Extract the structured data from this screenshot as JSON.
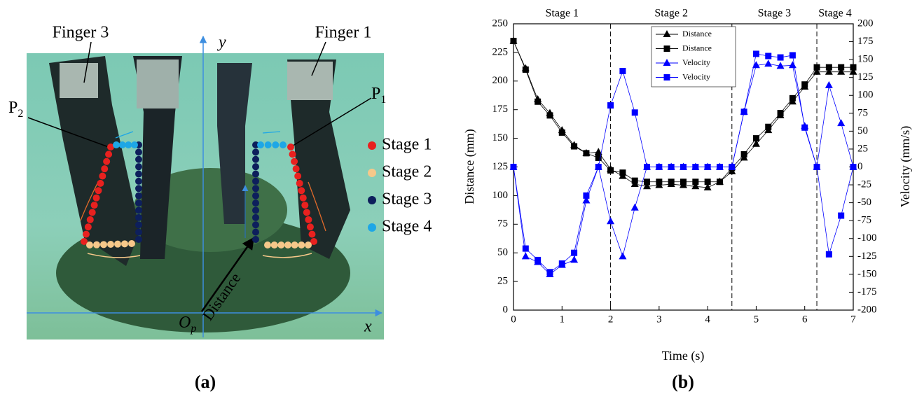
{
  "panel_a": {
    "labels": {
      "finger_3": "Finger 3",
      "finger_1": "Finger 1",
      "y_axis": "y",
      "x_axis": "x",
      "p2": {
        "text": "P",
        "sub": "2"
      },
      "p1": {
        "text": "P",
        "sub": "1"
      },
      "origin": {
        "text": "O",
        "sub": "p"
      },
      "distance": "Distance"
    },
    "legend": [
      {
        "label": "Stage 1",
        "color": "#e8211f"
      },
      {
        "label": "Stage 2",
        "color": "#f6c88a"
      },
      {
        "label": "Stage 3",
        "color": "#0d1f5c"
      },
      {
        "label": "Stage 4",
        "color": "#1ea7e6"
      }
    ],
    "caption": "(a)"
  },
  "chart_data": {
    "type": "line",
    "x_label": "Time (s)",
    "y_label": "Distance (mm)",
    "y2_label": "Velocity (mm/s)",
    "caption": "(b)",
    "x": [
      0,
      0.25,
      0.5,
      0.75,
      1,
      1.25,
      1.5,
      1.75,
      2,
      2.25,
      2.5,
      2.75,
      3,
      3.25,
      3.5,
      3.75,
      4,
      4.25,
      4.5,
      4.75,
      5,
      5.25,
      5.5,
      5.75,
      6,
      6.25,
      6.5,
      6.75,
      7
    ],
    "series": [
      {
        "name": "Distance",
        "color": "#000000",
        "marker": "triangle",
        "values": [
          235,
          211,
          184,
          172,
          157,
          144,
          137,
          138,
          123,
          117,
          110,
          108,
          109,
          110,
          109,
          108,
          107,
          112,
          121,
          133,
          145,
          157,
          170,
          182,
          195,
          208,
          208,
          208,
          208
        ]
      },
      {
        "name": "Distance",
        "color": "#000000",
        "marker": "square",
        "values": [
          235,
          210,
          182,
          170,
          155,
          143,
          137,
          133,
          122,
          120,
          113,
          112,
          112,
          112,
          112,
          112,
          112,
          112,
          124,
          136,
          150,
          160,
          172,
          185,
          197,
          212,
          212,
          212,
          212
        ]
      },
      {
        "name": "Velocity",
        "color": "#0000ff",
        "marker": "triangle",
        "axis": "y2",
        "values": [
          0,
          -125,
          -133,
          -150,
          -137,
          -130,
          -47,
          0,
          -76,
          -125,
          -57,
          0,
          0,
          0,
          0,
          0,
          0,
          0,
          0,
          77,
          142,
          144,
          141,
          142,
          57,
          0,
          114,
          61,
          0
        ]
      },
      {
        "name": "Velocity",
        "color": "#0000ff",
        "marker": "square",
        "axis": "y2",
        "values": [
          0,
          -114,
          -130,
          -147,
          -135,
          -120,
          -40,
          0,
          86,
          134,
          76,
          0,
          0,
          0,
          0,
          0,
          0,
          0,
          0,
          77,
          158,
          155,
          153,
          156,
          55,
          0,
          -122,
          -68,
          0
        ]
      }
    ],
    "stage_labels": [
      "Stage 1",
      "Stage 2",
      "Stage 3",
      "Stage 4"
    ],
    "stage_boundaries": [
      2,
      4.5,
      6.25
    ],
    "xlim": [
      0,
      7
    ],
    "xticks": [
      0,
      1,
      2,
      3,
      4,
      5,
      6,
      7
    ],
    "ylim": [
      0,
      250
    ],
    "yticks": [
      0,
      25,
      50,
      75,
      100,
      125,
      150,
      175,
      200,
      225,
      250
    ],
    "y2lim": [
      -200,
      200
    ],
    "y2ticks": [
      -200,
      -175,
      -150,
      -125,
      -100,
      -75,
      -50,
      -25,
      0,
      25,
      50,
      75,
      100,
      125,
      150,
      175,
      200
    ]
  }
}
